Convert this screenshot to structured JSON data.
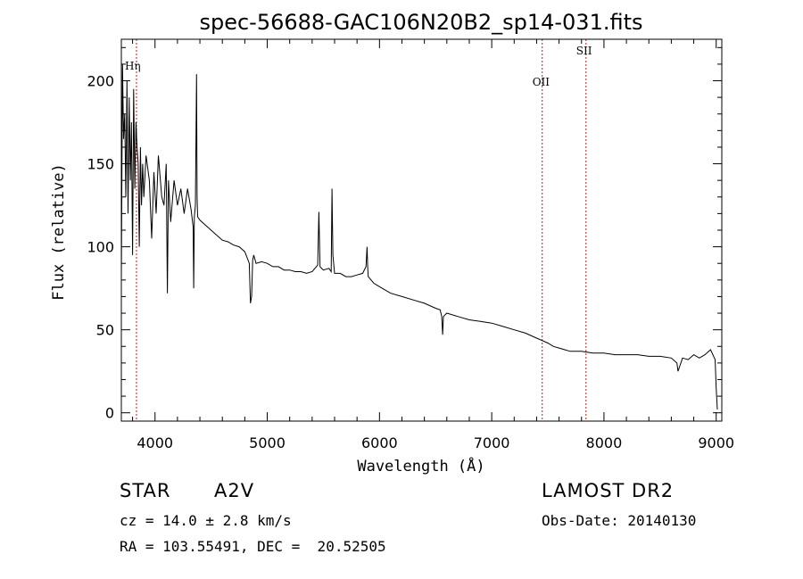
{
  "chart_data": {
    "type": "line",
    "title": "spec-56688-GAC106N20B2_sp14-031.fits",
    "xlabel": "Wavelength (Å)",
    "ylabel": "Flux (relative)",
    "xlim": [
      3700,
      9050
    ],
    "ylim": [
      -5,
      225
    ],
    "xticks": [
      4000,
      5000,
      6000,
      7000,
      8000,
      9000
    ],
    "yticks": [
      0,
      50,
      100,
      150,
      200
    ],
    "grid": false,
    "line_color": "#000000",
    "spectral_lines": [
      {
        "label": "Hη",
        "wavelength": 3835
      },
      {
        "label": "OII",
        "wavelength": 7450
      },
      {
        "label": "SII",
        "wavelength": 7840
      }
    ],
    "marker_color": "#b22222",
    "series": [
      {
        "x": [
          3700,
          3710,
          3720,
          3730,
          3740,
          3750,
          3760,
          3770,
          3780,
          3790,
          3800,
          3810,
          3820,
          3830,
          3840,
          3850,
          3860,
          3870,
          3880,
          3890,
          3900,
          3920,
          3950,
          3970,
          3990,
          4010,
          4030,
          4060,
          4080,
          4100,
          4110,
          4120,
          4140,
          4170,
          4200,
          4230,
          4260,
          4290,
          4320,
          4340,
          4345,
          4350,
          4360,
          4370,
          4375,
          4380,
          4400,
          4450,
          4500,
          4550,
          4600,
          4650,
          4700,
          4750,
          4800,
          4840,
          4850,
          4861,
          4870,
          4880,
          4900,
          4950,
          5000,
          5050,
          5100,
          5150,
          5200,
          5250,
          5300,
          5350,
          5400,
          5450,
          5460,
          5470,
          5500,
          5550,
          5570,
          5577,
          5585,
          5600,
          5650,
          5700,
          5750,
          5800,
          5850,
          5880,
          5889,
          5895,
          5900,
          5950,
          6000,
          6100,
          6200,
          6300,
          6400,
          6500,
          6540,
          6555,
          6563,
          6570,
          6600,
          6700,
          6800,
          6900,
          7000,
          7100,
          7200,
          7300,
          7400,
          7500,
          7550,
          7600,
          7650,
          7700,
          7800,
          7900,
          8000,
          8100,
          8200,
          8300,
          8400,
          8500,
          8600,
          8650,
          8660,
          8700,
          8750,
          8800,
          8850,
          8900,
          8950,
          8990,
          9000,
          9010
        ],
        "y": [
          80,
          210,
          165,
          180,
          130,
          200,
          120,
          190,
          140,
          175,
          95,
          195,
          135,
          175,
          160,
          150,
          100,
          160,
          125,
          150,
          130,
          155,
          140,
          105,
          145,
          120,
          155,
          130,
          125,
          150,
          72,
          140,
          115,
          140,
          125,
          135,
          120,
          135,
          123,
          112,
          75,
          118,
          125,
          204,
          130,
          118,
          116,
          113,
          110,
          107,
          104,
          103,
          101,
          100,
          97,
          90,
          66,
          70,
          92,
          95,
          90,
          91,
          90,
          88,
          88,
          86,
          86,
          85,
          85,
          84,
          85,
          89,
          121,
          88,
          86,
          87,
          85,
          135,
          95,
          84,
          84,
          82,
          82,
          83,
          84,
          88,
          100,
          88,
          82,
          78,
          76,
          72,
          70,
          68,
          66,
          63,
          62,
          58,
          47,
          58,
          60,
          58,
          56,
          55,
          54,
          52,
          50,
          48,
          45,
          42,
          40,
          39,
          38,
          37,
          37,
          36,
          36,
          35,
          35,
          35,
          34,
          34,
          33,
          30,
          25,
          33,
          32,
          35,
          33,
          35,
          38,
          32,
          15,
          2
        ]
      }
    ]
  },
  "info": {
    "obj_class": "STAR",
    "subclass": "A2V",
    "survey": "LAMOST DR2",
    "cz": "cz = 14.0 ± 2.8 km/s",
    "obs_date": "Obs-Date: 20140130",
    "coords": "RA = 103.55491, DEC =  20.52505"
  }
}
